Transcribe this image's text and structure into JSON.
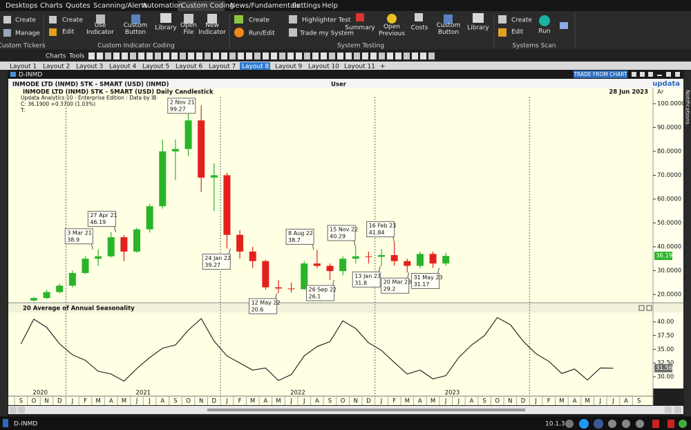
{
  "menu": {
    "items": [
      "Desktops",
      "Charts",
      "Quotes",
      "Scanning/Alerts",
      "Automation",
      "Custom Coding",
      "News/Fundamentals",
      "Settings",
      "Help"
    ],
    "active": 5
  },
  "ribbon": {
    "groups": [
      {
        "title": "Custom Tickers",
        "buttons": [
          "Create",
          "Manage"
        ]
      },
      {
        "title": "Custom Indicator Coding",
        "buttons": [
          "Create",
          "Edit",
          "Use Indicator",
          "Custom Button",
          "Library",
          "Open File",
          "New Indicator"
        ]
      },
      {
        "title": "System Testing",
        "buttons": [
          "Create",
          "Run/Edit",
          "Highlighter Test",
          "Trade my System",
          "Summary",
          "Open Previous",
          "Costs",
          "Custom Button",
          "Library"
        ]
      },
      {
        "title": "Systems Scan",
        "buttons": [
          "Create",
          "Edit",
          "Run"
        ]
      }
    ]
  },
  "toolbar": {
    "items": [
      "Charts",
      "Tools"
    ]
  },
  "tabs": {
    "items": [
      "Layout 1",
      "Layout 2",
      "Layout 3",
      "Layout 4",
      "Layout 5",
      "Layout 6",
      "Layout 7",
      "Layout 8",
      "Layout 9",
      "Layout 10",
      "Layout 11"
    ],
    "active": 7,
    "add": "+"
  },
  "window": {
    "title": "D-INMD",
    "trade_button": "TRADE FROM CHART",
    "side_label": "Notifications"
  },
  "chart_data": [
    {
      "type": "candlestick",
      "header": "INMODE LTD (INMD) STK - SMART (USD) (INMD)",
      "user": "User",
      "brand": "updata",
      "title": "INMODE LTD (INMD) STK - SMART (USD) Daily Candlestick",
      "date": "28 Jun 2023",
      "axis_mode": "Ar",
      "info": [
        "Updata Analytics 10 - Enterprise Edition : Data by IB",
        "C: 36.1900 +0.3700 (1.03%)",
        "T:"
      ],
      "xlim": [
        "2020-09",
        "2024-09"
      ],
      "x": [
        "2020-10",
        "2020-11",
        "2020-12",
        "2021-01",
        "2021-02",
        "2021-03",
        "2021-04",
        "2021-05",
        "2021-06",
        "2021-07",
        "2021-08",
        "2021-09",
        "2021-10",
        "2021-11",
        "2021-12",
        "2022-01",
        "2022-02",
        "2022-03",
        "2022-04",
        "2022-05",
        "2022-06",
        "2022-07",
        "2022-08",
        "2022-09",
        "2022-10",
        "2022-11",
        "2022-12",
        "2023-01",
        "2023-02",
        "2023-03",
        "2023-04",
        "2023-05",
        "2023-06"
      ],
      "open": [
        17.5,
        18.5,
        21,
        23.7,
        29,
        35,
        36,
        44,
        38,
        47.3,
        57,
        80,
        81,
        93,
        69,
        70,
        45,
        38,
        34,
        23,
        22.5,
        22.2,
        33,
        32,
        29.8,
        35,
        36,
        35.8,
        36.5,
        34,
        32,
        37,
        33
      ],
      "high": [
        19,
        22,
        24.5,
        30,
        36,
        38.9,
        46.19,
        45,
        48,
        58,
        85,
        85,
        96,
        99.27,
        75,
        71,
        47,
        40,
        34.5,
        26,
        25,
        34,
        38.7,
        33,
        36,
        40.29,
        38,
        39,
        41.84,
        35,
        38,
        38,
        37.5
      ],
      "low": [
        16.9,
        18,
        20.5,
        23,
        28.5,
        32,
        35.5,
        34,
        37.5,
        46,
        56,
        68,
        78,
        63,
        55,
        39.27,
        35,
        31,
        22,
        20.6,
        20.8,
        22,
        31,
        26.1,
        28,
        33,
        33,
        31.8,
        32,
        29.2,
        31,
        31.17,
        32
      ],
      "close": [
        18.5,
        21,
        23.7,
        29,
        35,
        36,
        44,
        38,
        47.3,
        57,
        80,
        81,
        93,
        69,
        70,
        45,
        38,
        34,
        23,
        22.5,
        22.2,
        33,
        32,
        29.8,
        35,
        36,
        35.8,
        36.5,
        34,
        32,
        37,
        33,
        36.19
      ],
      "up_color": "#29b529",
      "down_color": "#e3211c",
      "ylim": [
        16.8,
        102.9
      ],
      "yticks": [
        {
          "value": 20,
          "label": "20.0000"
        },
        {
          "value": 30,
          "label": "30.0000"
        },
        {
          "value": 40,
          "label": "40.0000"
        },
        {
          "value": 50,
          "label": "50.0000"
        },
        {
          "value": 60,
          "label": "60.0000"
        },
        {
          "value": 70,
          "label": "70.0000"
        },
        {
          "value": 80,
          "label": "80.0000"
        },
        {
          "value": 90,
          "label": "90.0000"
        },
        {
          "value": 100,
          "label": "100.0000"
        }
      ],
      "annotations": [
        {
          "date": "3 Mar 21",
          "value": 38.9
        },
        {
          "date": "27 Apr 21",
          "value": 46.19
        },
        {
          "date": "2 Nov 21",
          "value": 99.27
        },
        {
          "date": "24 Jan 22",
          "value": 39.27
        },
        {
          "date": "12 May 22",
          "value": 20.6
        },
        {
          "date": "8 Aug 22",
          "value": 38.7
        },
        {
          "date": "26 Sep 22",
          "value": 26.1
        },
        {
          "date": "15 Nov 22",
          "value": 40.29
        },
        {
          "date": "13 Jan 23",
          "value": 31.8
        },
        {
          "date": "16 Feb 23",
          "value": 41.84
        },
        {
          "date": "20 Mar 23",
          "value": 29.2
        },
        {
          "date": "31 May 23",
          "value": 31.17
        }
      ]
    },
    {
      "type": "line",
      "title": "20 Average of Annual Seasonality",
      "xlim": [
        "2020-09",
        "2024-09"
      ],
      "x": [
        "2020-09",
        "2020-10",
        "2020-11",
        "2020-12",
        "2021-01",
        "2021-02",
        "2021-03",
        "2021-04",
        "2021-05",
        "2021-06",
        "2021-07",
        "2021-08",
        "2021-09",
        "2021-10",
        "2021-11",
        "2021-12",
        "2022-01",
        "2022-02",
        "2022-03",
        "2022-04",
        "2022-05",
        "2022-06",
        "2022-07",
        "2022-08",
        "2022-09",
        "2022-10",
        "2022-11",
        "2022-12",
        "2023-01",
        "2023-02",
        "2023-03",
        "2023-04",
        "2023-05",
        "2023-06",
        "2023-07",
        "2023-08",
        "2023-09",
        "2023-10",
        "2023-11",
        "2023-12",
        "2024-01",
        "2024-02",
        "2024-03",
        "2024-04",
        "2024-05",
        "2024-06",
        "2024-07"
      ],
      "values": [
        36,
        40.5,
        39,
        36,
        34,
        33,
        31,
        30.5,
        29.2,
        31.5,
        33.5,
        35.2,
        35.8,
        38.5,
        40.6,
        36.5,
        33.8,
        32.5,
        31.2,
        31.6,
        29.3,
        30.4,
        33.8,
        35.5,
        36.4,
        40.2,
        38.8,
        36.2,
        34.8,
        32.6,
        30.5,
        31.2,
        29.6,
        30.2,
        33.5,
        35.8,
        37.5,
        40.8,
        39.5,
        36.5,
        34.2,
        32.8,
        30.6,
        31.4,
        29.4,
        31.6,
        31.56
      ],
      "color": "#1a1a1a",
      "ylim": [
        28.1,
        41.6
      ],
      "yticks": [
        {
          "value": 30,
          "label": "30.00"
        },
        {
          "value": 32.5,
          "label": "32.50"
        },
        {
          "value": 35,
          "label": "35.00"
        },
        {
          "value": 37.5,
          "label": "37.50"
        },
        {
          "value": 40,
          "label": "40.00"
        }
      ],
      "month_labels": [
        "S",
        "O",
        "N",
        "D",
        "J",
        "F",
        "M",
        "A",
        "M",
        "J",
        "J",
        "A",
        "S",
        "O",
        "N",
        "D",
        "J",
        "F",
        "M",
        "A",
        "M",
        "J",
        "J",
        "A",
        "S",
        "O",
        "N",
        "D",
        "J",
        "F",
        "M",
        "A",
        "M",
        "J",
        "J",
        "A",
        "S",
        "O",
        "N",
        "D",
        "J",
        "F",
        "M",
        "A",
        "M",
        "J",
        "J",
        "A",
        "S"
      ],
      "years": [
        2020,
        2021,
        2022,
        2023
      ]
    }
  ],
  "status": {
    "title": "D-INMD",
    "version": "10.1.3"
  }
}
